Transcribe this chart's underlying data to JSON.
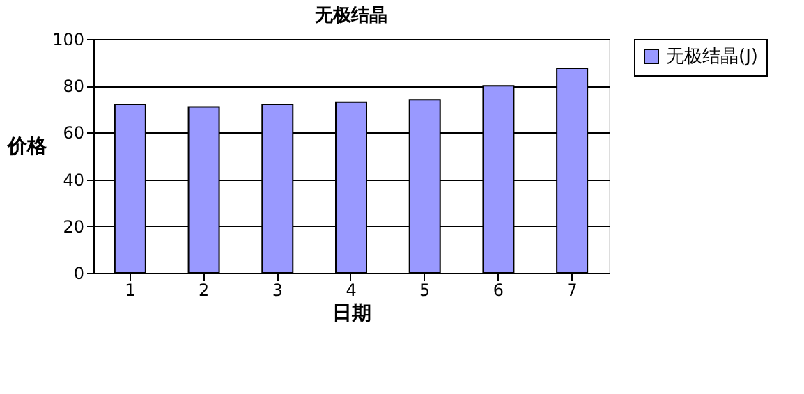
{
  "chart_data": {
    "type": "bar",
    "title": "无极结晶",
    "xlabel": "日期",
    "ylabel": "价格",
    "categories": [
      "1",
      "2",
      "3",
      "4",
      "5",
      "6",
      "7"
    ],
    "series": [
      {
        "name": "无极结晶(J)",
        "color": "#9999ff",
        "values": [
          72,
          71,
          72,
          73,
          74,
          80,
          87.5
        ]
      }
    ],
    "ylim": [
      0,
      100
    ],
    "yticks": [
      0,
      20,
      40,
      60,
      80,
      100
    ],
    "grid": "y",
    "legend": "right"
  }
}
